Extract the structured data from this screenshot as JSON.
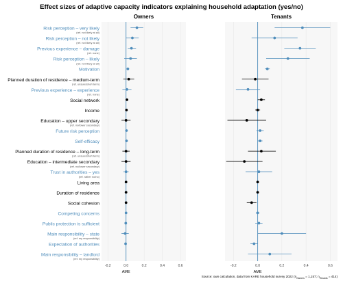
{
  "chart_data": {
    "type": "dot-and-whisker",
    "title": "Effect sizes of adaptive capacity indicators explaining household adaptation (yes/no)",
    "source_note": "Source: own calculation, data from KARE household survey 2022 (n",
    "source_sub_owners": "Owners",
    "source_mid": " = 1,157; n",
    "source_sub_tenants": "Tenants",
    "source_end": " = 414)",
    "colors": {
      "blue": "#4f8dbb",
      "black": "#000000",
      "panel_bg": "#f7f7f7",
      "grid": "#e6e6e6",
      "zero": "#4f8dbb"
    },
    "xlabel": "AME",
    "xticks": [
      -0.2,
      0.0,
      0.2,
      0.4,
      0.6
    ],
    "xtick_labels": [
      "-0.2",
      "0.0",
      "0.2",
      "0.4",
      "0.6"
    ],
    "xlim": [
      -0.27,
      0.66
    ],
    "categories": [
      {
        "label": "Risk perception – very likely",
        "ref": "(ref. not likely at all)",
        "color": "blue"
      },
      {
        "label": "Risk perception – not likely",
        "ref": "(ref. not likely at all)",
        "color": "blue"
      },
      {
        "label": "Previous experience – damage",
        "ref": "(ref. none)",
        "color": "blue"
      },
      {
        "label": "Risk perception – likely",
        "ref": "(ref. not likely at all)",
        "color": "blue"
      },
      {
        "label": "Motivation",
        "ref": "",
        "color": "blue"
      },
      {
        "label": "Planned duration of residence – medium-term",
        "ref": "(ref. unsure/short-term)",
        "color": "black"
      },
      {
        "label": "Previous experience – experience",
        "ref": "(ref. none)",
        "color": "blue"
      },
      {
        "label": "Social network",
        "ref": "",
        "color": "black"
      },
      {
        "label": "Income",
        "ref": "",
        "color": "black"
      },
      {
        "label": "Education – upper secondary",
        "ref": "(ref. no/lower secondary)",
        "color": "black"
      },
      {
        "label": "Future risk perception",
        "ref": "",
        "color": "blue"
      },
      {
        "label": "Self-efficacy",
        "ref": "",
        "color": "blue"
      },
      {
        "label": "Planned duration of residence – long-term",
        "ref": "(ref. unsure/short-term)",
        "color": "black"
      },
      {
        "label": "Education – intermediate secondary",
        "ref": "(ref. no/lower secondary)",
        "color": "black"
      },
      {
        "label": "Trust in authorities – yes",
        "ref": "(ref. rather no/no)",
        "color": "blue"
      },
      {
        "label": "Living area",
        "ref": "",
        "color": "black"
      },
      {
        "label": "Duration of residence",
        "ref": "",
        "color": "black"
      },
      {
        "label": "Social cohesion",
        "ref": "",
        "color": "black"
      },
      {
        "label": "Competing concerns",
        "ref": "",
        "color": "blue"
      },
      {
        "label": "Public protection is sufficient",
        "ref": "",
        "color": "blue"
      },
      {
        "label": "Main responsibility – state",
        "ref": "(ref. my responsibility)",
        "color": "blue"
      },
      {
        "label": "Expectation of authorities",
        "ref": "",
        "color": "blue"
      },
      {
        "label": "Main responsibility – landlord",
        "ref": "(ref. my responsibility)",
        "color": "blue"
      }
    ],
    "series": [
      {
        "name": "Owners",
        "estimates": [
          {
            "est": 0.12,
            "lo": 0.05,
            "hi": 0.19
          },
          {
            "est": 0.07,
            "lo": 0.0,
            "hi": 0.14
          },
          {
            "est": 0.06,
            "lo": 0.02,
            "hi": 0.11
          },
          {
            "est": 0.05,
            "lo": -0.02,
            "hi": 0.12
          },
          {
            "est": 0.02,
            "lo": 0.005,
            "hi": 0.035
          },
          {
            "est": 0.03,
            "lo": -0.03,
            "hi": 0.09
          },
          {
            "est": 0.01,
            "lo": -0.04,
            "hi": 0.06
          },
          {
            "est": 0.01,
            "lo": -0.005,
            "hi": 0.025
          },
          {
            "est": 0.005,
            "lo": -0.005,
            "hi": 0.015
          },
          {
            "est": 0.0,
            "lo": -0.05,
            "hi": 0.05
          },
          {
            "est": 0.005,
            "lo": -0.005,
            "hi": 0.015
          },
          {
            "est": 0.005,
            "lo": -0.01,
            "hi": 0.02
          },
          {
            "est": 0.0,
            "lo": -0.04,
            "hi": 0.04
          },
          {
            "est": 0.0,
            "lo": -0.05,
            "hi": 0.05
          },
          {
            "est": 0.0,
            "lo": -0.03,
            "hi": 0.03
          },
          {
            "est": 0.0,
            "lo": -0.005,
            "hi": 0.005
          },
          {
            "est": 0.0,
            "lo": -0.005,
            "hi": 0.005
          },
          {
            "est": 0.0,
            "lo": -0.005,
            "hi": 0.005
          },
          {
            "est": 0.0,
            "lo": -0.005,
            "hi": 0.005
          },
          {
            "est": -0.003,
            "lo": -0.012,
            "hi": 0.006
          },
          {
            "est": -0.01,
            "lo": -0.05,
            "hi": 0.03
          },
          {
            "est": -0.005,
            "lo": -0.015,
            "hi": 0.005
          },
          null
        ]
      },
      {
        "name": "Tenants",
        "estimates": [
          {
            "est": 0.37,
            "lo": 0.14,
            "hi": 0.6
          },
          {
            "est": 0.14,
            "lo": -0.05,
            "hi": 0.33
          },
          {
            "est": 0.35,
            "lo": 0.22,
            "hi": 0.48
          },
          {
            "est": 0.25,
            "lo": 0.07,
            "hi": 0.43
          },
          {
            "est": 0.08,
            "lo": 0.06,
            "hi": 0.1
          },
          {
            "est": -0.02,
            "lo": -0.13,
            "hi": 0.09
          },
          {
            "est": -0.08,
            "lo": -0.18,
            "hi": 0.02
          },
          {
            "est": 0.03,
            "lo": 0.0,
            "hi": 0.06
          },
          {
            "est": 0.0,
            "lo": -0.02,
            "hi": 0.02
          },
          {
            "est": -0.09,
            "lo": -0.25,
            "hi": 0.07
          },
          {
            "est": 0.02,
            "lo": -0.01,
            "hi": 0.05
          },
          {
            "est": 0.02,
            "lo": 0.0,
            "hi": 0.04
          },
          {
            "est": 0.03,
            "lo": -0.08,
            "hi": 0.15
          },
          {
            "est": -0.11,
            "lo": -0.26,
            "hi": 0.04
          },
          {
            "est": 0.01,
            "lo": -0.1,
            "hi": 0.12
          },
          {
            "est": 0.0,
            "lo": -0.01,
            "hi": 0.01
          },
          {
            "est": 0.0,
            "lo": -0.01,
            "hi": 0.01
          },
          {
            "est": -0.05,
            "lo": -0.09,
            "hi": -0.01
          },
          {
            "est": 0.0,
            "lo": -0.015,
            "hi": 0.015
          },
          {
            "est": 0.01,
            "lo": -0.02,
            "hi": 0.04
          },
          {
            "est": 0.2,
            "lo": 0.0,
            "hi": 0.4
          },
          {
            "est": -0.03,
            "lo": -0.06,
            "hi": 0.0
          },
          {
            "est": 0.1,
            "lo": -0.08,
            "hi": 0.28
          }
        ]
      }
    ],
    "legend": "none",
    "grid": true
  }
}
